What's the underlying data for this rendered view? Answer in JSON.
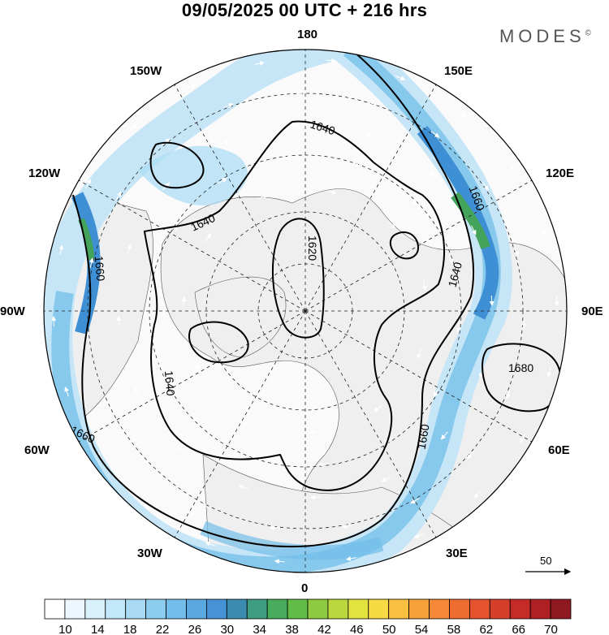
{
  "header": {
    "title": "09/05/2025  00 UTC  + 216 hrs",
    "logo": "MODES",
    "logo_mark": "©"
  },
  "longitude_labels": [
    "180",
    "150E",
    "120E",
    "90E",
    "60E",
    "30E",
    "0",
    "30W",
    "60W",
    "90W",
    "120W",
    "150W"
  ],
  "contours": [
    {
      "label": "1620",
      "value": 1620
    },
    {
      "label": "1640",
      "value": 1640
    },
    {
      "label": "1660",
      "value": 1660
    },
    {
      "label": "1680",
      "value": 1680
    }
  ],
  "wind_reference": {
    "label": "50"
  },
  "colorbar": {
    "tick_labels": [
      "10",
      "14",
      "18",
      "22",
      "26",
      "30",
      "34",
      "38",
      "42",
      "46",
      "50",
      "54",
      "58",
      "62",
      "66",
      "70"
    ],
    "colors": [
      "#ffffff",
      "#ecf8fd",
      "#d9f1fb",
      "#c2e7f8",
      "#a8dbf3",
      "#8ccdef",
      "#72bdea",
      "#5aa8e0",
      "#4593d4",
      "#3b8cb0",
      "#3f9e82",
      "#47ad5c",
      "#63bc48",
      "#8ecb43",
      "#bcd83f",
      "#e3e33f",
      "#f7d944",
      "#f9bf40",
      "#f7a23b",
      "#f48836",
      "#ef6c31",
      "#e4532c",
      "#d63f29",
      "#c52b27",
      "#ae2024",
      "#901921"
    ]
  },
  "colors": {
    "land_fill": "#f2f2f2",
    "contour": "#000000",
    "jet_light": "#c6e6f7",
    "jet_mid": "#77c0ea",
    "jet_core": "#3f8fd4",
    "jet_max": "#44a35a"
  }
}
